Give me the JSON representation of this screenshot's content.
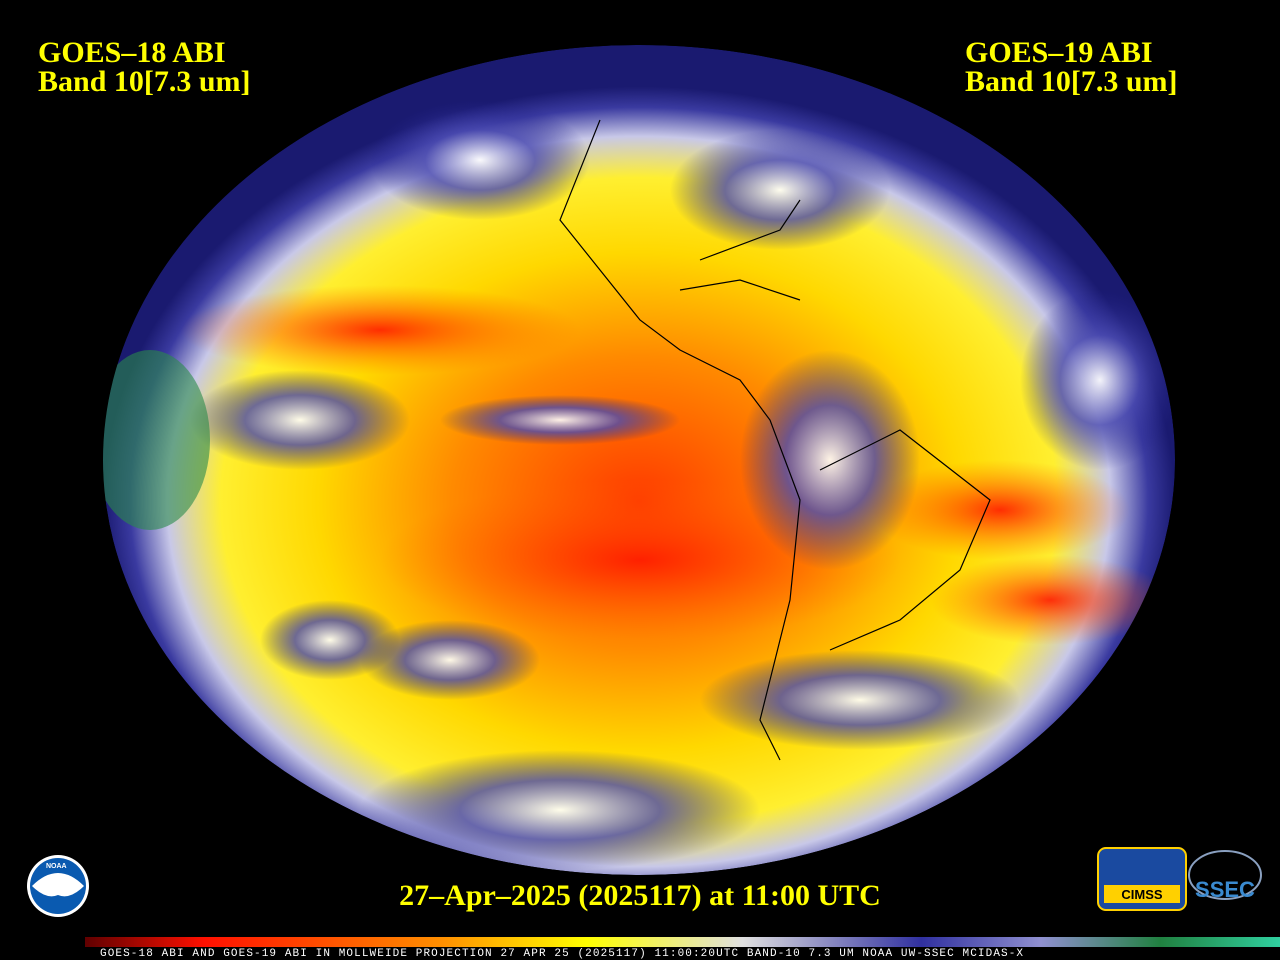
{
  "header": {
    "left": {
      "satellite": "GOES–18 ABI",
      "band": "Band 10[7.3 um]"
    },
    "right": {
      "satellite": "GOES–19 ABI",
      "band": "Band 10[7.3 um]"
    }
  },
  "timestamp": "27–Apr–2025 (2025117) at 11:00 UTC",
  "footer": "GOES-18 ABI AND GOES-19 ABI IN MOLLWEIDE PROJECTION 27 APR 25 (2025117) 11:00:20UTC BAND-10 7.3 UM NOAA UW-SSEC MCIDAS-X",
  "logos": {
    "noaa": "NOAA",
    "cimss": "CIMSS",
    "ssec": "SSEC"
  }
}
